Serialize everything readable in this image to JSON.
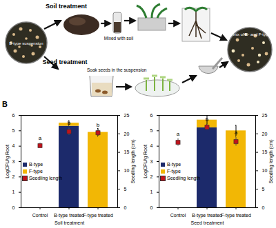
{
  "figure": {
    "panel_a": {
      "soil_treatment": "Soil treatment",
      "mixed_with_soil": "Mixed with soil",
      "b_type_suspension": "B-type suspension",
      "seed_treatment": "Seed treatment",
      "soak_seeds": "Soak seeds in the suspension",
      "mix": "A mix of B- and F-type"
    },
    "panel_b_label": "B"
  },
  "chart_data": [
    {
      "type": "bar",
      "stacked": true,
      "x_label": "Soil treatment",
      "y_label": "LogCFU/g Root",
      "y2_label": "Seedling length (cm)",
      "categories": [
        "Control",
        "B-type treated",
        "F-type treated"
      ],
      "ylim": [
        0,
        6
      ],
      "yticks": [
        0,
        1,
        2,
        3,
        4,
        5,
        6
      ],
      "y2lim": [
        0,
        25
      ],
      "y2ticks": [
        0,
        5,
        10,
        15,
        20,
        25
      ],
      "legend": "left",
      "series": [
        {
          "name": "B-type",
          "color": "#1c2a6b",
          "values": [
            0,
            5.3,
            0
          ]
        },
        {
          "name": "F-type",
          "color": "#f2b705",
          "values": [
            0,
            0.2,
            4.9
          ],
          "errors": [
            null,
            0.15,
            0.25
          ]
        },
        {
          "name": "Seedling length",
          "type": "scatter",
          "axis": "y2",
          "marker": "square",
          "color": "#c0141c",
          "values": [
            16.8,
            20.6,
            20.3
          ],
          "errors": [
            0.7,
            1.0,
            0.8
          ],
          "letters": [
            "a",
            "b",
            "b"
          ]
        }
      ]
    },
    {
      "type": "bar",
      "stacked": true,
      "x_label": "Seed treatment",
      "y_label": "LogCFU/g Root",
      "y2_label": "Seedling length (cm)",
      "categories": [
        "Control",
        "B-type treated",
        "F-type treated"
      ],
      "ylim": [
        0,
        6
      ],
      "yticks": [
        0,
        1,
        2,
        3,
        4,
        5,
        6
      ],
      "y2lim": [
        0,
        25
      ],
      "y2ticks": [
        0,
        5,
        10,
        15,
        20,
        25
      ],
      "legend": "left",
      "series": [
        {
          "name": "B-type",
          "color": "#1c2a6b",
          "values": [
            0,
            5.2,
            0
          ]
        },
        {
          "name": "F-type",
          "color": "#f2b705",
          "values": [
            0,
            0.5,
            5.0
          ],
          "errors": [
            null,
            0.3,
            0.35
          ]
        },
        {
          "name": "Seedling length",
          "type": "scatter",
          "axis": "y2",
          "marker": "square",
          "color": "#c0141c",
          "values": [
            17.7,
            21.8,
            17.9
          ],
          "errors": [
            1.0,
            0.8,
            1.2
          ],
          "letters": [
            "a",
            "b",
            "a"
          ]
        }
      ]
    }
  ]
}
